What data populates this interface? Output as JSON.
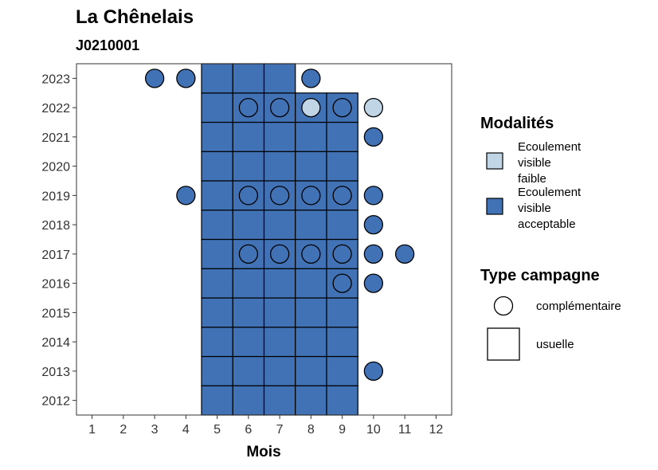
{
  "chart_data": {
    "type": "heatmap",
    "title": "La Chênelais",
    "subtitle": "J0210001",
    "xlabel": "Mois",
    "ylabel": "",
    "x_ticks": [
      1,
      2,
      3,
      4,
      5,
      6,
      7,
      8,
      9,
      10,
      11,
      12
    ],
    "y_ticks": [
      2012,
      2013,
      2014,
      2015,
      2016,
      2017,
      2018,
      2019,
      2020,
      2021,
      2022,
      2023
    ],
    "xlim": [
      0.5,
      12.5
    ],
    "ylim": [
      2011.5,
      2023.5
    ],
    "colors": {
      "faible": "#c0d5e5",
      "acceptable": "#4272b6",
      "border": "#000000",
      "axis": "#333333"
    },
    "legend": {
      "modalites": {
        "title": "Modalités",
        "items": [
          {
            "key": "faible",
            "lines": [
              "Ecoulement",
              "visible",
              "faible"
            ]
          },
          {
            "key": "acceptable",
            "lines": [
              "Ecoulement",
              "visible",
              "acceptable"
            ]
          }
        ]
      },
      "type_campagne": {
        "title": "Type campagne",
        "items": [
          {
            "shape": "circle",
            "label": "complémentaire"
          },
          {
            "shape": "square",
            "label": "usuelle"
          }
        ]
      }
    },
    "usuelle": [
      {
        "year": 2012,
        "months": [
          5,
          6,
          7,
          8,
          9
        ],
        "modalite": "acceptable"
      },
      {
        "year": 2013,
        "months": [
          5,
          6,
          7,
          8,
          9
        ],
        "modalite": "acceptable"
      },
      {
        "year": 2014,
        "months": [
          5,
          6,
          7,
          8,
          9
        ],
        "modalite": "acceptable"
      },
      {
        "year": 2015,
        "months": [
          5,
          6,
          7,
          8,
          9
        ],
        "modalite": "acceptable"
      },
      {
        "year": 2016,
        "months": [
          5,
          6,
          7,
          8,
          9
        ],
        "modalite": "acceptable"
      },
      {
        "year": 2017,
        "months": [
          5,
          6,
          7,
          8,
          9
        ],
        "modalite": "acceptable"
      },
      {
        "year": 2018,
        "months": [
          5,
          6,
          7,
          8,
          9
        ],
        "modalite": "acceptable"
      },
      {
        "year": 2019,
        "months": [
          5,
          6,
          7,
          8,
          9
        ],
        "modalite": "acceptable"
      },
      {
        "year": 2020,
        "months": [
          5,
          6,
          7,
          8,
          9
        ],
        "modalite": "acceptable"
      },
      {
        "year": 2021,
        "months": [
          5,
          6,
          7,
          8,
          9
        ],
        "modalite": "acceptable"
      },
      {
        "year": 2022,
        "months": [
          5,
          6,
          7,
          8,
          9
        ],
        "modalite": "acceptable"
      },
      {
        "year": 2023,
        "months": [
          5,
          6,
          7
        ],
        "modalite": "acceptable"
      }
    ],
    "complementaire": [
      {
        "year": 2013,
        "month": 10,
        "modalite": "acceptable"
      },
      {
        "year": 2016,
        "month": 9,
        "modalite": "acceptable"
      },
      {
        "year": 2016,
        "month": 10,
        "modalite": "acceptable"
      },
      {
        "year": 2017,
        "month": 6,
        "modalite": "acceptable"
      },
      {
        "year": 2017,
        "month": 7,
        "modalite": "acceptable"
      },
      {
        "year": 2017,
        "month": 8,
        "modalite": "acceptable"
      },
      {
        "year": 2017,
        "month": 9,
        "modalite": "acceptable"
      },
      {
        "year": 2017,
        "month": 10,
        "modalite": "acceptable"
      },
      {
        "year": 2017,
        "month": 11,
        "modalite": "acceptable"
      },
      {
        "year": 2018,
        "month": 10,
        "modalite": "acceptable"
      },
      {
        "year": 2019,
        "month": 4,
        "modalite": "acceptable"
      },
      {
        "year": 2019,
        "month": 6,
        "modalite": "acceptable"
      },
      {
        "year": 2019,
        "month": 7,
        "modalite": "acceptable"
      },
      {
        "year": 2019,
        "month": 8,
        "modalite": "acceptable"
      },
      {
        "year": 2019,
        "month": 9,
        "modalite": "acceptable"
      },
      {
        "year": 2019,
        "month": 10,
        "modalite": "acceptable"
      },
      {
        "year": 2021,
        "month": 10,
        "modalite": "acceptable"
      },
      {
        "year": 2022,
        "month": 6,
        "modalite": "acceptable"
      },
      {
        "year": 2022,
        "month": 7,
        "modalite": "acceptable"
      },
      {
        "year": 2022,
        "month": 8,
        "modalite": "faible"
      },
      {
        "year": 2022,
        "month": 9,
        "modalite": "acceptable"
      },
      {
        "year": 2022,
        "month": 10,
        "modalite": "faible"
      },
      {
        "year": 2023,
        "month": 3,
        "modalite": "acceptable"
      },
      {
        "year": 2023,
        "month": 4,
        "modalite": "acceptable"
      },
      {
        "year": 2023,
        "month": 8,
        "modalite": "acceptable"
      }
    ]
  }
}
